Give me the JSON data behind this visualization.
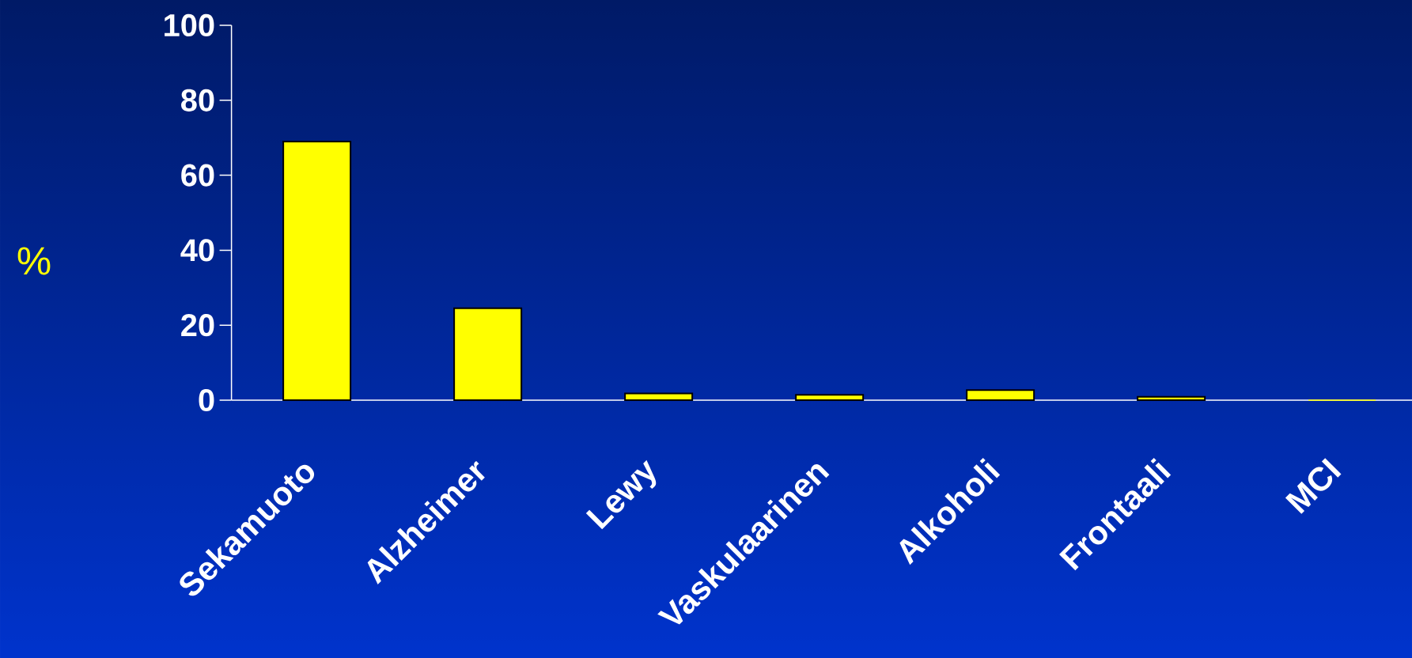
{
  "chart_data": {
    "type": "bar",
    "ylabel": "%",
    "categories": [
      "Sekamuoto",
      "Alzheimer",
      "Lewy",
      "Vaskulaarinen",
      "Alkoholi",
      "Frontaali",
      "MCI"
    ],
    "values": [
      69,
      24.5,
      1.8,
      1.4,
      2.7,
      0.9,
      0
    ],
    "color": "#ffff00",
    "ylim": [
      0,
      100
    ],
    "yticks": [
      0,
      20,
      40,
      60,
      80,
      100
    ],
    "grid": false
  }
}
